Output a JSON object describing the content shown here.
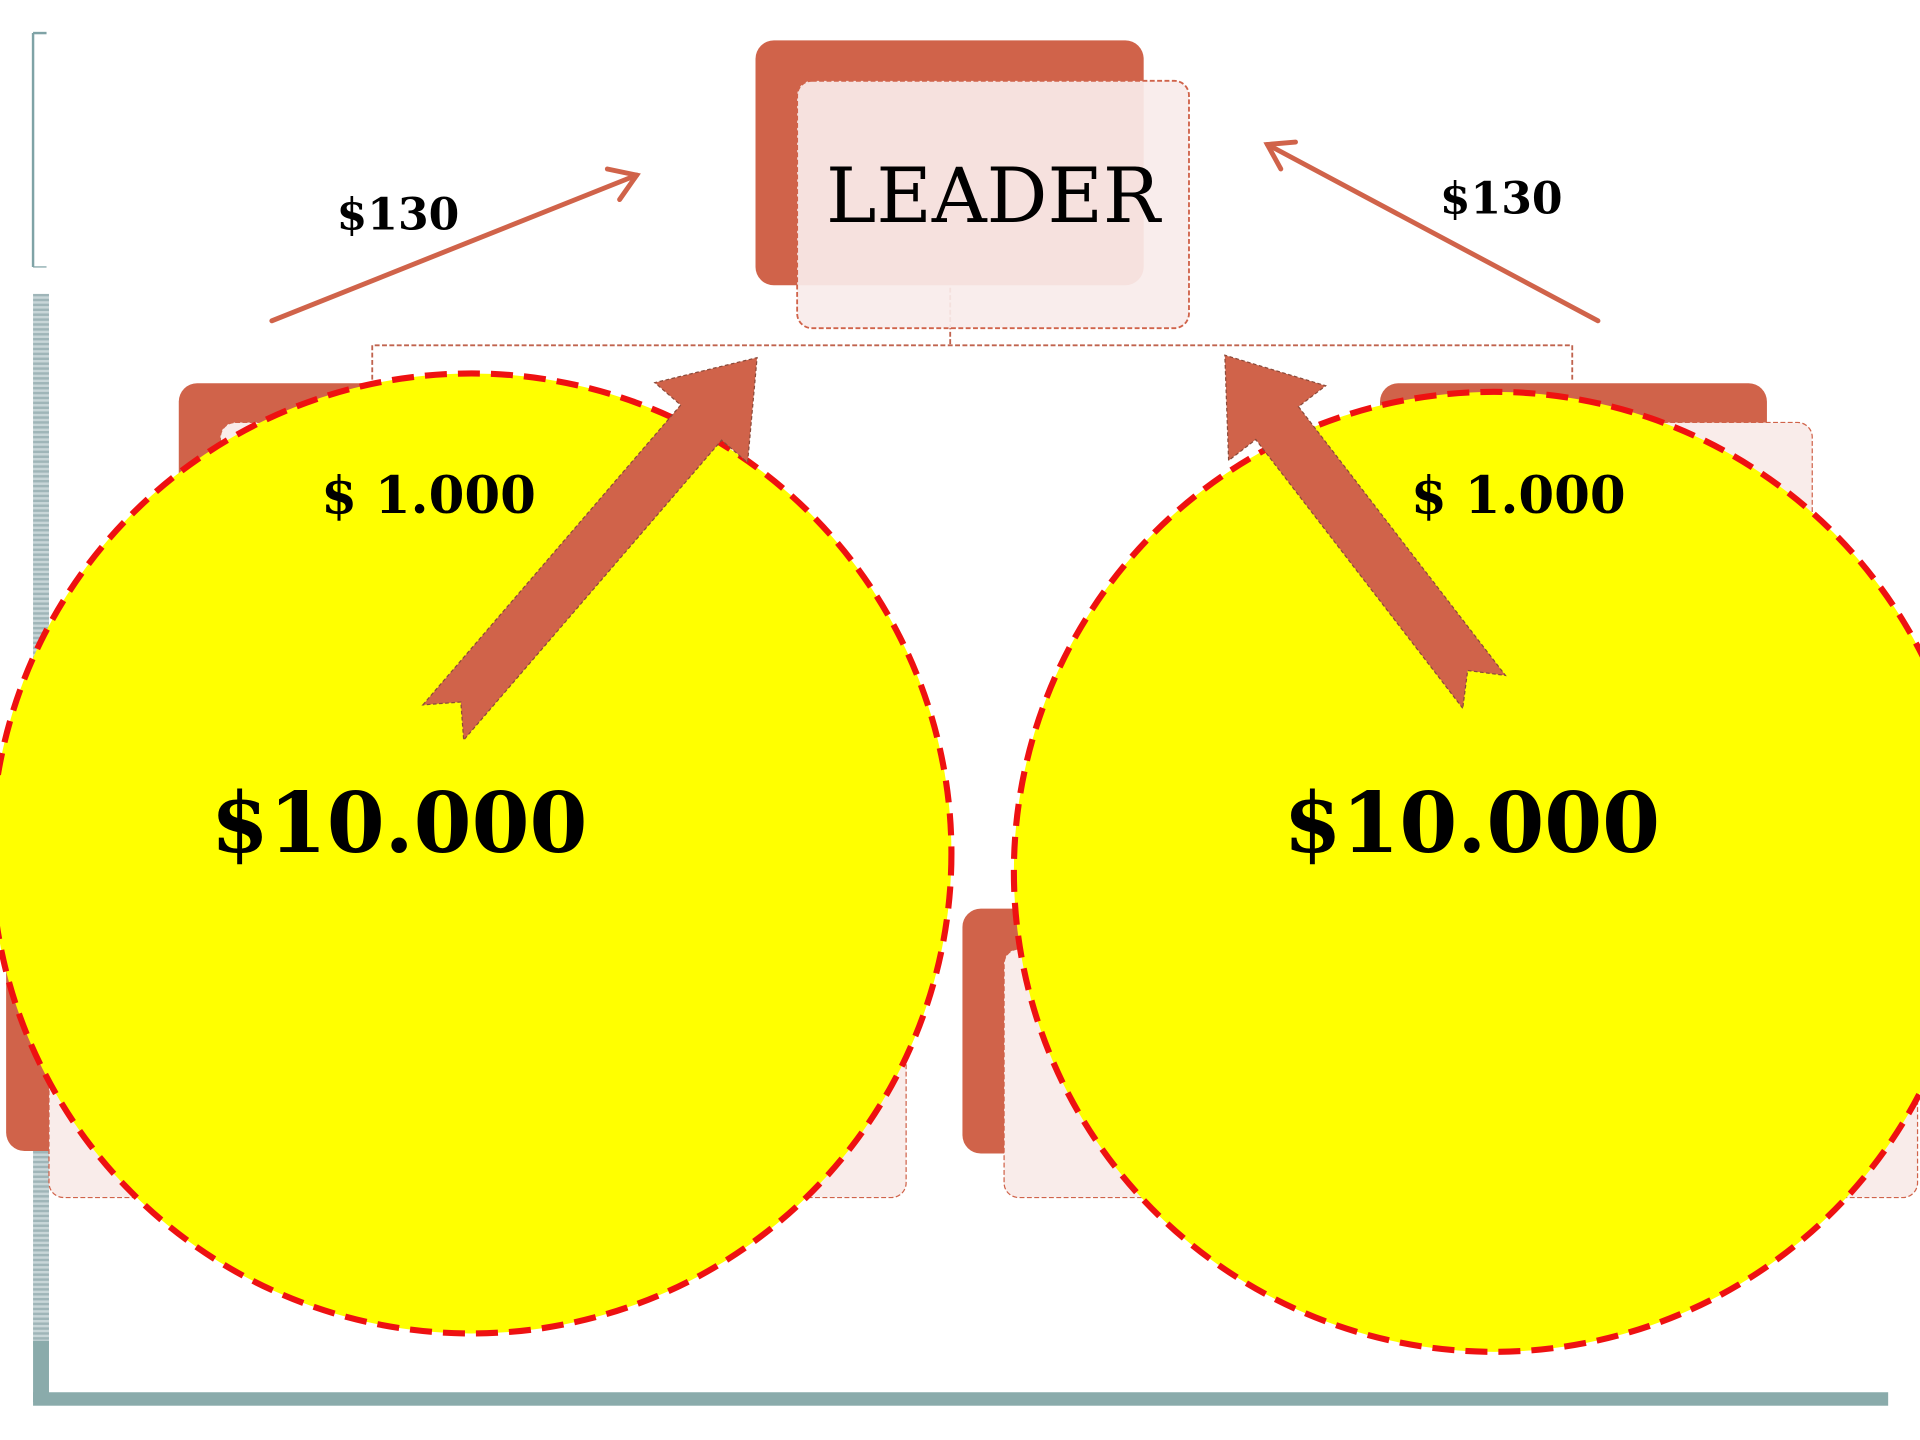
{
  "leader": {
    "label": "LEADER"
  },
  "groups": [
    {
      "commission": "$130",
      "contribution": "$ 1.000",
      "amount": "$10.000"
    },
    {
      "commission": "$130",
      "contribution": "$ 1.000",
      "amount": "$10.000"
    }
  ]
}
